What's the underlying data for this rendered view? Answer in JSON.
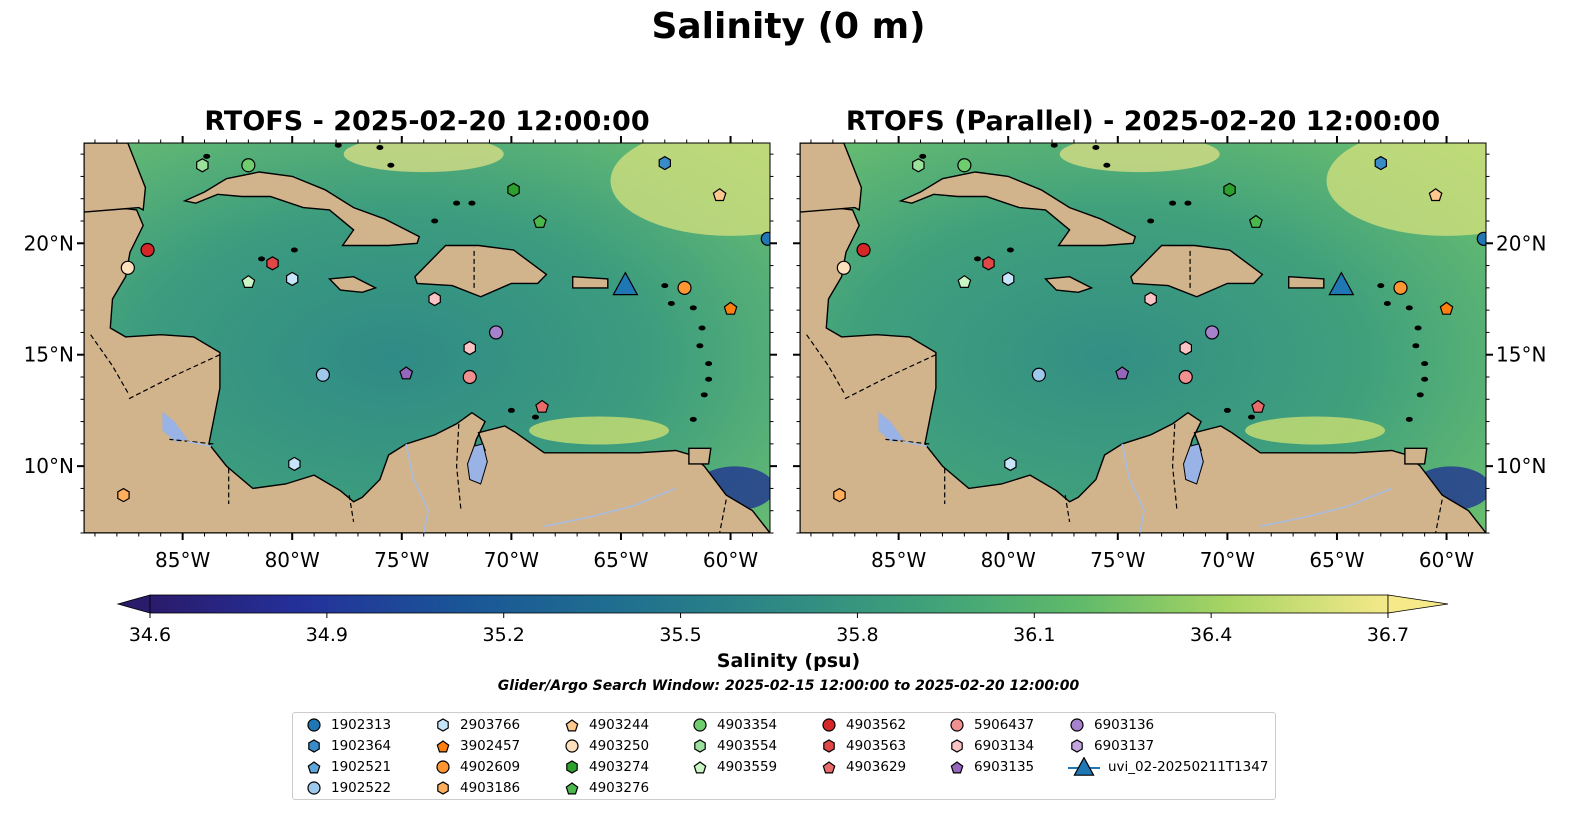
{
  "suptitle": "Salinity (0 m)",
  "panels": [
    {
      "title": "RTOFS - 2025-02-20 12:00:00"
    },
    {
      "title": "RTOFS (Parallel) - 2025-02-20 12:00:00"
    }
  ],
  "axes": {
    "lon_ticks": [
      "85°W",
      "80°W",
      "75°W",
      "70°W",
      "65°W",
      "60°W"
    ],
    "lat_ticks": [
      "20°N",
      "15°N",
      "10°N"
    ],
    "lon_range": [
      -89.5,
      -58.2
    ],
    "lat_range": [
      7.0,
      24.5
    ]
  },
  "colorbar": {
    "label": "Salinity (psu)",
    "ticks": [
      "34.6",
      "34.9",
      "35.2",
      "35.5",
      "35.8",
      "36.1",
      "36.4",
      "36.7"
    ],
    "vmin": 34.6,
    "vmax": 36.7,
    "colormap": "haline",
    "extend": "both"
  },
  "search_window": "Glider/Argo Search Window: 2025-02-15 12:00:00 to 2025-02-20 12:00:00",
  "colors": {
    "land": "#d2b48c",
    "lake": "#99b3e6",
    "ocean_mid": "#3a9a82",
    "deep_fresh": "#2a1b6b"
  },
  "legend": [
    {
      "label": "1902313",
      "marker": "circle",
      "color": "#1f77b4"
    },
    {
      "label": "1902364",
      "marker": "hexagon",
      "color": "#3a8cc8"
    },
    {
      "label": "1902521",
      "marker": "pentagon",
      "color": "#5fa6db"
    },
    {
      "label": "1902522",
      "marker": "circle",
      "color": "#9ec9ec"
    },
    {
      "label": "2903766",
      "marker": "hexagon",
      "color": "#c6e5fa"
    },
    {
      "label": "3902457",
      "marker": "pentagon",
      "color": "#ff7f0e"
    },
    {
      "label": "4902609",
      "marker": "circle",
      "color": "#ff9632"
    },
    {
      "label": "4903186",
      "marker": "hexagon",
      "color": "#ffae5c"
    },
    {
      "label": "4903244",
      "marker": "pentagon",
      "color": "#ffc88f"
    },
    {
      "label": "4903250",
      "marker": "circle",
      "color": "#ffe0bd"
    },
    {
      "label": "4903274",
      "marker": "hexagon",
      "color": "#2ca02c"
    },
    {
      "label": "4903276",
      "marker": "pentagon",
      "color": "#4cb84c"
    },
    {
      "label": "4903354",
      "marker": "circle",
      "color": "#6fcc6f"
    },
    {
      "label": "4903554",
      "marker": "hexagon",
      "color": "#9be09b"
    },
    {
      "label": "4903559",
      "marker": "pentagon",
      "color": "#ccf5c6"
    },
    {
      "label": "4903562",
      "marker": "circle",
      "color": "#d62728"
    },
    {
      "label": "4903563",
      "marker": "hexagon",
      "color": "#e04848"
    },
    {
      "label": "4903629",
      "marker": "pentagon",
      "color": "#ea6b6b"
    },
    {
      "label": "5906437",
      "marker": "circle",
      "color": "#f09090"
    },
    {
      "label": "6903134",
      "marker": "hexagon",
      "color": "#fbc3c3"
    },
    {
      "label": "6903135",
      "marker": "pentagon",
      "color": "#9467bd"
    },
    {
      "label": "6903136",
      "marker": "circle",
      "color": "#a681cc"
    },
    {
      "label": "6903137",
      "marker": "hexagon",
      "color": "#c3a6e0"
    },
    {
      "label": "uvi_02-20250211T1347",
      "marker": "triangle",
      "color": "#1f77b4"
    }
  ],
  "floats": [
    {
      "id": "1902313",
      "lon": -58.3,
      "lat": 20.2
    },
    {
      "id": "1902364",
      "lon": -63.0,
      "lat": 23.6
    },
    {
      "id": "1902522",
      "lon": -78.6,
      "lat": 14.1
    },
    {
      "id": "2903766",
      "lon": -80.0,
      "lat": 18.4
    },
    {
      "id": "2903766",
      "lon": -79.9,
      "lat": 10.1
    },
    {
      "id": "3902457",
      "lon": -60.0,
      "lat": 17.1
    },
    {
      "id": "4902609",
      "lon": -62.1,
      "lat": 18.0
    },
    {
      "id": "4903186",
      "lon": -87.7,
      "lat": 8.7
    },
    {
      "id": "4903244",
      "lon": -60.5,
      "lat": 22.2
    },
    {
      "id": "4903250",
      "lon": -87.5,
      "lat": 18.9
    },
    {
      "id": "4903274",
      "lon": -69.9,
      "lat": 22.4
    },
    {
      "id": "4903276",
      "lon": -68.7,
      "lat": 21.0
    },
    {
      "id": "4903354",
      "lon": -82.0,
      "lat": 23.5
    },
    {
      "id": "4903554",
      "lon": -84.1,
      "lat": 23.5
    },
    {
      "id": "4903559",
      "lon": -82.0,
      "lat": 18.3
    },
    {
      "id": "4903562",
      "lon": -86.6,
      "lat": 19.7
    },
    {
      "id": "4903563",
      "lon": -80.9,
      "lat": 19.1
    },
    {
      "id": "4903629",
      "lon": -68.6,
      "lat": 12.7
    },
    {
      "id": "5906437",
      "lon": -71.9,
      "lat": 14.0
    },
    {
      "id": "6903134",
      "lon": -73.5,
      "lat": 17.5
    },
    {
      "id": "6903134",
      "lon": -71.9,
      "lat": 15.3
    },
    {
      "id": "6903135",
      "lon": -74.8,
      "lat": 14.2
    },
    {
      "id": "6903136",
      "lon": -70.7,
      "lat": 16.0
    }
  ],
  "glider": {
    "id": "uvi_02-20250211T1347",
    "lon": -64.8,
    "lat": 18.1
  }
}
